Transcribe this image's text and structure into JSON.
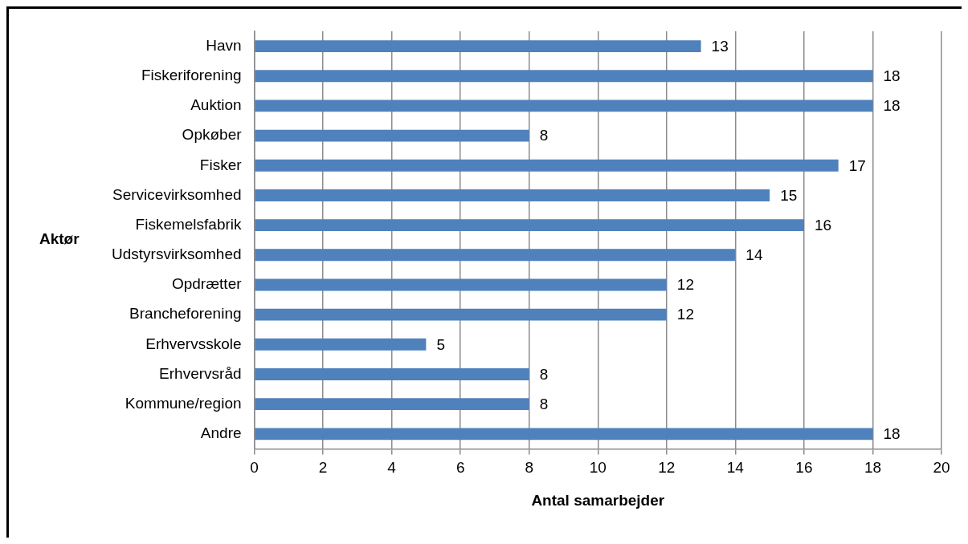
{
  "chart_data": {
    "type": "bar",
    "orientation": "horizontal",
    "xlabel": "Antal samarbejder",
    "ylabel": "Aktør",
    "categories": [
      "Havn",
      "Fiskeriforening",
      "Auktion",
      "Opkøber",
      "Fisker",
      "Servicevirksomhed",
      "Fiskemelsfabrik",
      "Udstyrsvirksomhed",
      "Opdrætter",
      "Brancheforening",
      "Erhvervsskole",
      "Erhvervsråd",
      "Kommune/region",
      "Andre"
    ],
    "values": [
      13,
      18,
      18,
      8,
      17,
      15,
      16,
      14,
      12,
      12,
      5,
      8,
      8,
      18
    ],
    "color": "#4f81bd",
    "xlim": [
      0,
      20
    ],
    "xticks": [
      0,
      2,
      4,
      6,
      8,
      10,
      12,
      14,
      16,
      18,
      20
    ],
    "grid": "x",
    "data_labels": true,
    "legend": false
  }
}
